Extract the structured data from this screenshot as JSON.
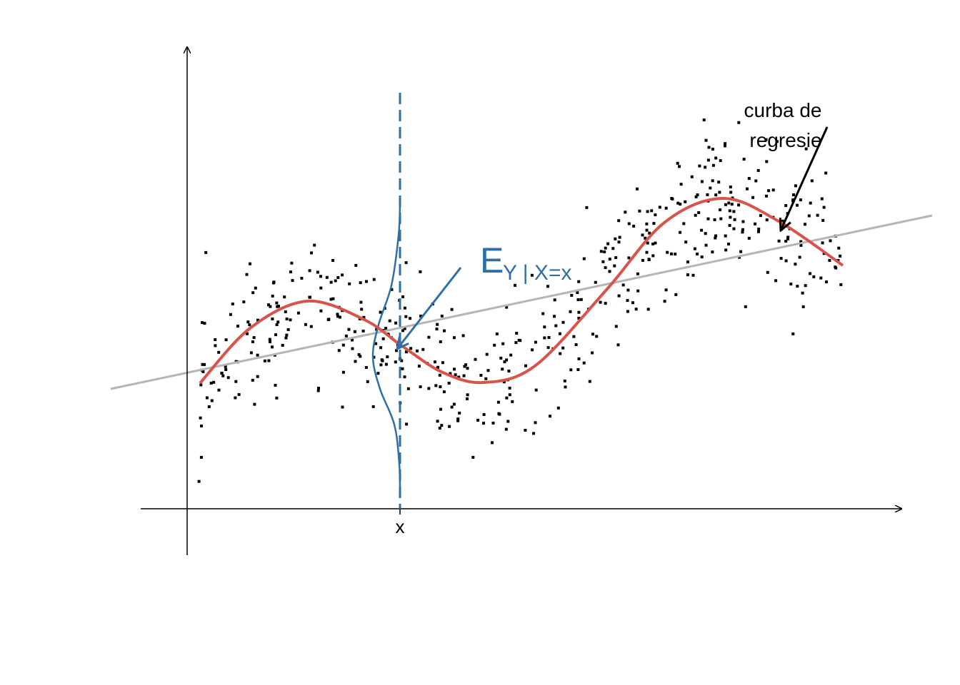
{
  "labels": {
    "x_tick": "x",
    "expectation": {
      "base": "E",
      "subscript": "Y | X=x"
    },
    "curve_label": [
      "curba de",
      "regresie"
    ]
  }
}
